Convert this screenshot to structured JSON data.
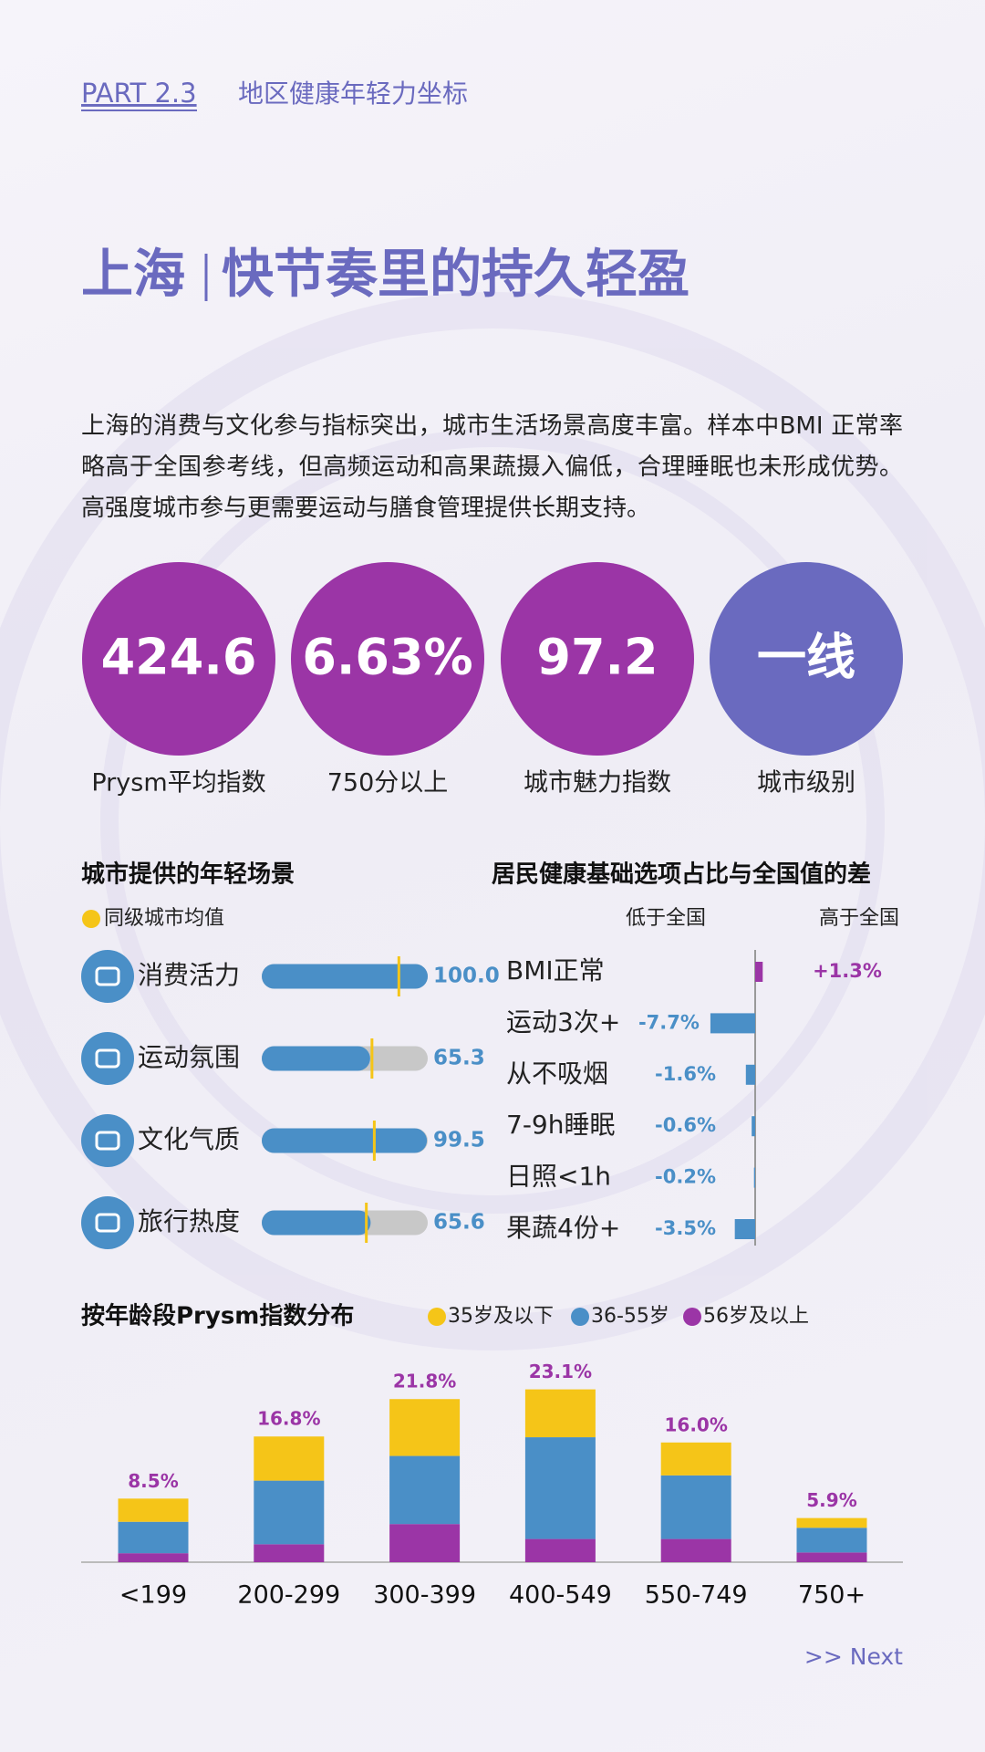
{
  "header": {
    "part": "PART 2.3",
    "section": "地区健康年轻力坐标"
  },
  "title": {
    "city": "上海",
    "tagline": "快节奏里的持久轻盈"
  },
  "intro": "上海的消费与文化参与指标突出，城市生活场景高度丰富。样本中BMI 正常率略高于全国参考线，但高频运动和高果蔬摄入偏低，合理睡眠也未形成优势。高强度城市参与更需要运动与膳食管理提供长期支持。",
  "stats": [
    {
      "value": "424.6",
      "label": "Prysm平均指数",
      "color": "#9b35a6"
    },
    {
      "value": "6.63%",
      "label": "750分以上",
      "color": "#9b35a6"
    },
    {
      "value": "97.2",
      "label": "城市魅力指数",
      "color": "#9b35a6"
    },
    {
      "value": "一线",
      "label": "城市级别",
      "color": "#6a6abf"
    }
  ],
  "chart_data": [
    {
      "type": "hbar",
      "title": "城市提供的年轻场景",
      "categories": [
        "消费活力",
        "运动氛围",
        "文化气质",
        "旅行热度"
      ],
      "values": [
        100,
        65.3,
        99.5,
        65.6
      ],
      "value_labels": [
        "100.0",
        "65.3",
        "99.5",
        "65.6"
      ],
      "color": "#4a8fc7",
      "xlim": [
        0,
        100
      ],
      "reference": {
        "name": "同级城市均值",
        "color": "#f5c518",
        "values": [
          82.6,
          66.4,
          67.8,
          63
        ]
      }
    },
    {
      "type": "diverging",
      "title": "居民健康基础选项占比与全国值的差",
      "left_label": "低于全国",
      "right_label": "高于全国",
      "categories": [
        "BMI正常",
        "运动3次+",
        "从不吸烟",
        "7-9h睡眠",
        "日照<1h",
        "果蔬4份+"
      ],
      "values": [
        1.3,
        -7.7,
        -1.6,
        -0.6,
        -0.2,
        -3.5
      ],
      "value_labels": [
        "+1.3%",
        "-7.7%",
        "-1.6%",
        "-0.6%",
        "-0.2%",
        "-3.5%"
      ],
      "positive_color": "#9b35a6",
      "negative_color": "#4a8fc7",
      "xlim": [
        -8,
        8
      ]
    },
    {
      "type": "stacked",
      "title": "按年龄段Prysm指数分布",
      "categories": [
        "<199",
        "200-299",
        "300-399",
        "400-549",
        "550-749",
        "750+"
      ],
      "series": [
        {
          "name": "56岁及以上",
          "color": "#9b35a6",
          "values": [
            1.2,
            2.4,
            5.1,
            3.1,
            3.1,
            1.3
          ]
        },
        {
          "name": "36-55岁",
          "color": "#4a8fc7",
          "values": [
            4.2,
            8.5,
            9.1,
            13.6,
            8.5,
            3.3
          ]
        },
        {
          "name": "35岁及以下",
          "color": "#f5c518",
          "values": [
            3.1,
            5.9,
            7.6,
            6.4,
            4.4,
            1.3
          ]
        }
      ],
      "totals": [
        8.5,
        16.8,
        21.8,
        23.1,
        16.0,
        5.9
      ],
      "total_labels": [
        "8.5%",
        "16.8%",
        "21.8%",
        "23.1%",
        "16.0%",
        "5.9%"
      ],
      "total_color": "#9b35a6",
      "ylim": [
        0,
        25
      ]
    }
  ],
  "footer": {
    "next": ">> Next"
  }
}
